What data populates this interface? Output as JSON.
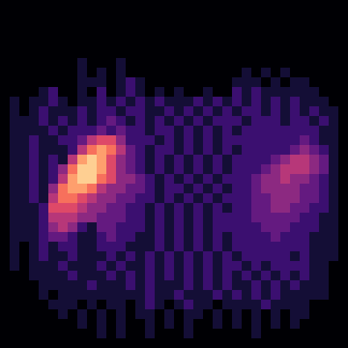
{
  "chart_data": {
    "type": "heatmap",
    "color": "magma",
    "tick_labels": false,
    "zlim": [
      0,
      10
    ],
    "cells": [
      [
        0,
        0,
        0,
        0,
        0,
        0,
        0,
        0,
        0,
        0,
        0,
        0,
        0,
        0,
        0,
        0,
        0,
        0,
        0,
        0,
        0,
        0,
        0,
        0,
        0,
        0,
        0,
        0,
        0,
        0,
        0,
        0,
        0,
        0,
        0,
        0
      ],
      [
        0,
        0,
        0,
        0,
        0,
        0,
        0,
        0,
        0,
        0,
        0,
        0,
        0,
        0,
        0,
        0,
        0,
        0,
        0,
        0,
        0,
        0,
        0,
        0,
        0,
        0,
        0,
        0,
        0,
        0,
        0,
        0,
        0,
        0,
        0,
        0
      ],
      [
        0,
        0,
        0,
        0,
        0,
        0,
        0,
        0,
        0,
        0,
        0,
        0,
        0,
        0,
        0,
        0,
        0,
        0,
        0,
        0,
        0,
        0,
        0,
        0,
        0,
        0,
        0,
        0,
        0,
        0,
        0,
        0,
        0,
        0,
        0,
        0
      ],
      [
        0,
        0,
        0,
        0,
        0,
        0,
        0,
        0,
        0,
        0,
        0,
        0,
        0,
        0,
        0,
        0,
        0,
        0,
        0,
        0,
        0,
        0,
        0,
        0,
        0,
        0,
        0,
        0,
        0,
        0,
        0,
        0,
        0,
        0,
        0,
        0
      ],
      [
        0,
        0,
        0,
        0,
        0,
        0,
        0,
        0,
        0,
        0,
        0,
        0,
        0,
        0,
        0,
        0,
        0,
        0,
        0,
        0,
        0,
        0,
        0,
        0,
        0,
        0,
        0,
        0,
        0,
        0,
        0,
        0,
        0,
        0,
        0,
        0
      ],
      [
        0,
        0,
        0,
        0,
        0,
        0,
        0,
        0,
        0,
        0,
        0,
        0,
        0,
        0,
        0,
        0,
        0,
        0,
        0,
        0,
        0,
        0,
        0,
        0,
        0,
        0,
        0,
        0,
        0,
        0,
        0,
        0,
        0,
        0,
        0,
        0
      ],
      [
        0,
        0,
        0,
        0,
        0,
        0,
        0,
        0,
        1,
        0,
        0,
        0,
        1,
        0,
        0,
        0,
        0,
        0,
        0,
        0,
        0,
        0,
        0,
        0,
        0,
        0,
        0,
        0,
        0,
        0,
        0,
        0,
        0,
        0,
        0,
        0
      ],
      [
        0,
        0,
        0,
        0,
        0,
        0,
        0,
        0,
        1,
        0,
        1,
        0,
        1,
        0,
        0,
        0,
        0,
        0,
        0,
        0,
        0,
        0,
        0,
        0,
        0,
        1,
        0,
        1,
        0,
        1,
        0,
        0,
        0,
        0,
        0,
        0
      ],
      [
        0,
        0,
        0,
        0,
        0,
        0,
        0,
        0,
        1,
        1,
        1,
        0,
        1,
        2,
        1,
        0,
        0,
        0,
        0,
        0,
        0,
        0,
        0,
        0,
        1,
        1,
        1,
        0,
        1,
        0,
        1,
        1,
        0,
        0,
        0,
        0
      ],
      [
        0,
        0,
        0,
        0,
        1,
        2,
        0,
        0,
        1,
        0,
        2,
        0,
        1,
        2,
        1,
        0,
        1,
        0,
        1,
        0,
        0,
        1,
        0,
        0,
        2,
        1,
        2,
        1,
        1,
        1,
        1,
        1,
        1,
        0,
        0,
        0
      ],
      [
        0,
        1,
        0,
        1,
        1,
        2,
        1,
        0,
        1,
        1,
        2,
        1,
        2,
        1,
        2,
        1,
        2,
        1,
        1,
        1,
        2,
        1,
        2,
        1,
        2,
        1,
        2,
        1,
        2,
        1,
        2,
        1,
        1,
        1,
        0,
        0
      ],
      [
        0,
        1,
        0,
        1,
        2,
        1,
        1,
        1,
        2,
        1,
        2,
        2,
        1,
        2,
        2,
        1,
        1,
        2,
        1,
        2,
        1,
        2,
        1,
        2,
        1,
        2,
        2,
        1,
        2,
        1,
        2,
        1,
        2,
        1,
        1,
        0
      ],
      [
        0,
        1,
        1,
        1,
        2,
        1,
        2,
        1,
        2,
        1,
        2,
        3,
        2,
        1,
        2,
        1,
        2,
        1,
        2,
        1,
        2,
        1,
        2,
        2,
        2,
        1,
        2,
        2,
        2,
        1,
        2,
        2,
        1,
        2,
        1,
        0
      ],
      [
        0,
        1,
        1,
        1,
        1,
        2,
        1,
        2,
        2,
        2,
        3,
        2,
        3,
        2,
        2,
        1,
        2,
        2,
        1,
        2,
        1,
        2,
        1,
        2,
        1,
        2,
        2,
        2,
        2,
        2,
        2,
        2,
        2,
        1,
        1,
        0
      ],
      [
        0,
        1,
        1,
        2,
        1,
        1,
        2,
        2,
        3,
        5,
        6,
        6,
        4,
        2,
        2,
        2,
        1,
        2,
        1,
        2,
        1,
        2,
        1,
        2,
        2,
        2,
        2,
        2,
        2,
        2,
        2,
        3,
        2,
        1,
        1,
        0
      ],
      [
        0,
        1,
        1,
        2,
        1,
        1,
        1,
        2,
        5,
        7,
        8,
        7,
        5,
        3,
        2,
        1,
        2,
        2,
        1,
        2,
        1,
        2,
        1,
        2,
        1,
        2,
        2,
        2,
        2,
        2,
        3,
        4,
        3,
        2,
        1,
        0
      ],
      [
        0,
        1,
        1,
        2,
        1,
        2,
        1,
        5,
        8,
        9,
        8,
        6,
        4,
        3,
        2,
        1,
        2,
        1,
        2,
        1,
        2,
        1,
        2,
        1,
        2,
        2,
        2,
        2,
        3,
        4,
        5,
        5,
        4,
        3,
        1,
        0
      ],
      [
        0,
        1,
        1,
        2,
        1,
        2,
        4,
        7,
        9,
        9,
        8,
        6,
        4,
        3,
        2,
        1,
        2,
        1,
        2,
        1,
        2,
        1,
        2,
        1,
        2,
        2,
        2,
        3,
        4,
        5,
        5,
        5,
        4,
        3,
        1,
        0
      ],
      [
        0,
        1,
        1,
        2,
        1,
        2,
        5,
        8,
        9,
        9,
        7,
        6,
        4,
        4,
        3,
        2,
        1,
        2,
        1,
        2,
        1,
        2,
        1,
        2,
        2,
        2,
        3,
        4,
        4,
        5,
        4,
        4,
        3,
        2,
        1,
        0
      ],
      [
        0,
        1,
        1,
        2,
        1,
        4,
        7,
        8,
        8,
        7,
        5,
        4,
        4,
        3,
        3,
        2,
        1,
        2,
        2,
        1,
        2,
        1,
        2,
        1,
        2,
        2,
        3,
        4,
        4,
        4,
        4,
        3,
        3,
        2,
        1,
        0
      ],
      [
        0,
        1,
        1,
        2,
        1,
        5,
        7,
        7,
        6,
        5,
        4,
        4,
        3,
        3,
        2,
        2,
        1,
        2,
        1,
        2,
        1,
        2,
        1,
        2,
        2,
        2,
        3,
        3,
        4,
        4,
        4,
        3,
        3,
        2,
        1,
        0
      ],
      [
        0,
        1,
        1,
        1,
        2,
        6,
        6,
        6,
        5,
        4,
        4,
        3,
        3,
        2,
        2,
        1,
        2,
        1,
        2,
        1,
        2,
        1,
        2,
        1,
        2,
        2,
        3,
        3,
        4,
        4,
        3,
        3,
        2,
        2,
        1,
        0
      ],
      [
        0,
        1,
        1,
        1,
        2,
        5,
        5,
        5,
        4,
        4,
        3,
        3,
        3,
        2,
        2,
        1,
        2,
        1,
        2,
        1,
        2,
        1,
        2,
        2,
        2,
        2,
        3,
        3,
        3,
        3,
        3,
        2,
        2,
        1,
        1,
        0
      ],
      [
        0,
        1,
        1,
        1,
        2,
        4,
        5,
        4,
        2,
        1,
        3,
        3,
        2,
        2,
        2,
        1,
        2,
        1,
        2,
        1,
        2,
        1,
        2,
        2,
        2,
        2,
        2,
        3,
        3,
        3,
        2,
        2,
        2,
        1,
        1,
        0
      ],
      [
        0,
        1,
        1,
        1,
        2,
        3,
        3,
        2,
        1,
        1,
        2,
        3,
        2,
        2,
        1,
        1,
        2,
        1,
        2,
        1,
        2,
        1,
        2,
        1,
        2,
        2,
        2,
        2,
        3,
        2,
        2,
        2,
        1,
        1,
        1,
        0
      ],
      [
        0,
        1,
        0,
        1,
        2,
        1,
        2,
        2,
        1,
        1,
        2,
        2,
        2,
        1,
        1,
        1,
        2,
        1,
        2,
        1,
        2,
        1,
        2,
        1,
        2,
        2,
        2,
        2,
        2,
        2,
        2,
        2,
        1,
        1,
        1,
        0
      ],
      [
        0,
        1,
        0,
        1,
        2,
        1,
        1,
        2,
        1,
        1,
        1,
        2,
        1,
        2,
        1,
        2,
        1,
        2,
        1,
        2,
        1,
        2,
        1,
        2,
        1,
        2,
        2,
        2,
        2,
        2,
        1,
        2,
        1,
        1,
        1,
        0
      ],
      [
        0,
        1,
        0,
        1,
        1,
        1,
        2,
        1,
        1,
        1,
        2,
        1,
        2,
        1,
        1,
        2,
        1,
        2,
        1,
        2,
        1,
        2,
        1,
        2,
        2,
        1,
        2,
        1,
        2,
        2,
        2,
        2,
        1,
        1,
        0,
        0
      ],
      [
        0,
        0,
        0,
        1,
        1,
        1,
        1,
        2,
        1,
        1,
        1,
        2,
        1,
        2,
        1,
        2,
        1,
        2,
        1,
        2,
        1,
        2,
        1,
        2,
        1,
        2,
        1,
        2,
        1,
        2,
        1,
        2,
        1,
        1,
        0,
        0
      ],
      [
        0,
        0,
        0,
        0,
        1,
        1,
        1,
        1,
        1,
        2,
        1,
        1,
        1,
        2,
        1,
        2,
        1,
        1,
        1,
        2,
        1,
        2,
        1,
        2,
        1,
        1,
        2,
        1,
        2,
        1,
        2,
        1,
        1,
        1,
        0,
        0
      ],
      [
        0,
        0,
        0,
        0,
        1,
        0,
        1,
        1,
        1,
        1,
        1,
        1,
        1,
        1,
        1,
        2,
        1,
        1,
        2,
        1,
        1,
        1,
        2,
        1,
        2,
        1,
        2,
        1,
        2,
        1,
        1,
        1,
        1,
        1,
        0,
        0
      ],
      [
        0,
        0,
        0,
        0,
        0,
        1,
        1,
        1,
        0,
        1,
        0,
        1,
        1,
        0,
        1,
        2,
        1,
        0,
        1,
        2,
        1,
        1,
        0,
        1,
        1,
        1,
        1,
        2,
        1,
        1,
        1,
        1,
        0,
        0,
        0,
        0
      ],
      [
        0,
        0,
        0,
        0,
        0,
        0,
        1,
        0,
        1,
        0,
        1,
        0,
        1,
        0,
        1,
        1,
        0,
        1,
        0,
        1,
        1,
        0,
        1,
        0,
        1,
        0,
        1,
        0,
        1,
        0,
        1,
        1,
        0,
        0,
        0,
        0
      ],
      [
        0,
        0,
        0,
        0,
        0,
        0,
        0,
        0,
        1,
        0,
        1,
        0,
        1,
        0,
        0,
        1,
        0,
        1,
        0,
        1,
        0,
        0,
        1,
        0,
        1,
        0,
        1,
        0,
        1,
        0,
        1,
        0,
        0,
        0,
        0,
        0
      ],
      [
        0,
        0,
        0,
        0,
        0,
        0,
        0,
        0,
        0,
        0,
        1,
        0,
        1,
        0,
        0,
        1,
        0,
        0,
        0,
        1,
        0,
        0,
        0,
        0,
        0,
        0,
        1,
        0,
        0,
        0,
        0,
        0,
        0,
        0,
        0,
        0
      ],
      [
        0,
        0,
        0,
        0,
        0,
        0,
        0,
        0,
        0,
        0,
        0,
        0,
        0,
        0,
        0,
        0,
        0,
        0,
        0,
        0,
        0,
        0,
        0,
        0,
        0,
        0,
        0,
        0,
        0,
        0,
        0,
        0,
        0,
        0,
        0,
        0
      ]
    ]
  }
}
